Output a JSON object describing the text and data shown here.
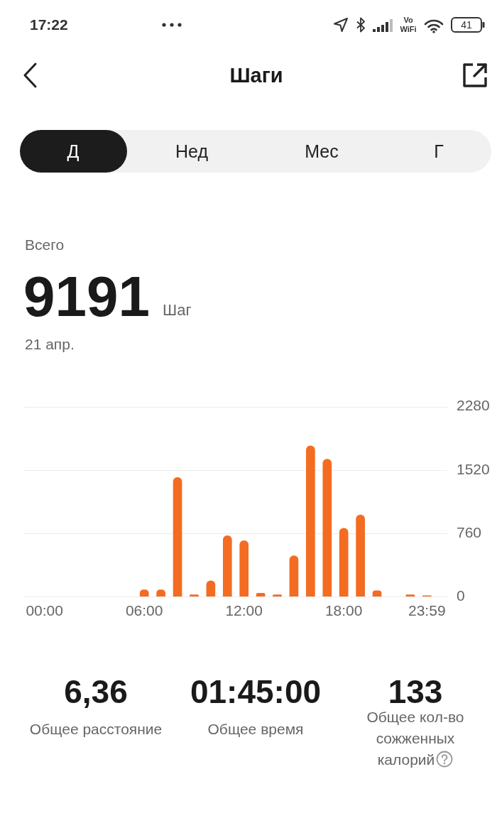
{
  "chart_data": {
    "type": "bar",
    "title": "Шаги",
    "categories": [
      "00:00",
      null,
      null,
      null,
      null,
      null,
      "06:00",
      null,
      null,
      null,
      null,
      null,
      "12:00",
      null,
      null,
      null,
      null,
      null,
      "18:00",
      null,
      null,
      null,
      null,
      "23:59"
    ],
    "values": [
      0,
      0,
      0,
      0,
      0,
      0,
      80,
      80,
      1430,
      20,
      190,
      730,
      670,
      40,
      20,
      490,
      1810,
      1650,
      820,
      980,
      70,
      0,
      20,
      10
    ],
    "color": "#f36c21",
    "ylim": [
      0,
      2280
    ],
    "yticks": [
      0,
      760,
      1520,
      2280
    ],
    "grid": "y",
    "annotations": [
      "17:22",
      "Vo",
      "WiFi",
      "41",
      "Д",
      "Нед",
      "Мес",
      "Г",
      "Всего",
      "9191",
      "Шаг",
      "21 апр.",
      "6,36",
      "Общее расстояние",
      "01:45:00",
      "Общее время",
      "133",
      "Общее кол-во сожженных калорий"
    ]
  }
}
